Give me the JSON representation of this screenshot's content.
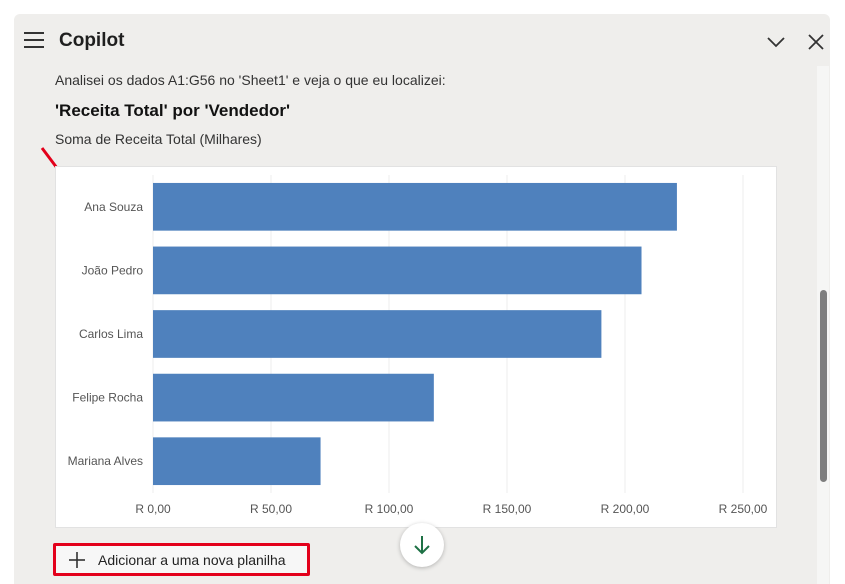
{
  "header": {
    "title": "Copilot"
  },
  "message": {
    "intro": "Analisei os dados A1:G56 no 'Sheet1' e veja o que eu localizei:",
    "heading": "'Receita Total' por 'Vendedor'",
    "subheading": "Soma de Receita Total (Milhares)"
  },
  "chart_data": {
    "type": "bar",
    "orientation": "horizontal",
    "categories": [
      "Ana Souza",
      "João Pedro",
      "Carlos Lima",
      "Felipe Rocha",
      "Mariana Alves"
    ],
    "values": [
      222,
      207,
      190,
      119,
      71
    ],
    "xlim": [
      0,
      250
    ],
    "x_ticks": [
      0,
      50,
      100,
      150,
      200,
      250
    ],
    "x_tick_labels": [
      "R 0,00",
      "R 50,00",
      "R 100,00",
      "R 150,00",
      "R 200,00",
      "R 250,00"
    ],
    "bar_color": "#4f81bd",
    "grid": "vertical"
  },
  "actions": {
    "add_label": "Adicionar a uma nova planilha"
  },
  "icons": {
    "menu": "hamburger-menu-icon",
    "chevron": "chevron-down-icon",
    "close": "close-icon",
    "plus": "plus-icon",
    "scroll_down": "arrow-down-icon"
  },
  "colors": {
    "accent_green": "#1e7145",
    "highlight_red": "#e3001b"
  }
}
